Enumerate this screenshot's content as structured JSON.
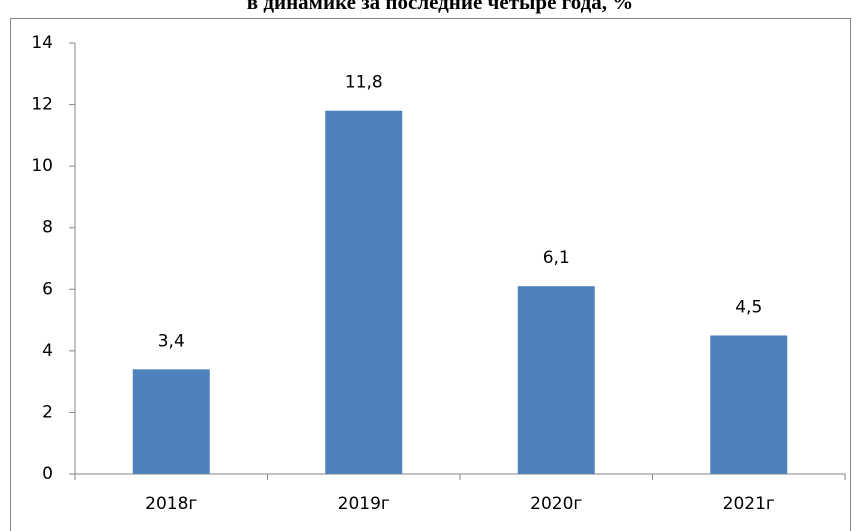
{
  "chart_data": {
    "type": "bar",
    "title": "в динамике за последние четыре года, %",
    "categories": [
      "2018г",
      "2019г",
      "2020г",
      "2021г"
    ],
    "values": [
      3.4,
      11.8,
      6.1,
      4.5
    ],
    "value_labels": [
      "3,4",
      "11,8",
      "6,1",
      "4,5"
    ],
    "color": "#4f81bd",
    "ylim": [
      0,
      14
    ],
    "yticks": [
      0,
      2,
      4,
      6,
      8,
      10,
      12,
      14
    ],
    "grid": false
  }
}
